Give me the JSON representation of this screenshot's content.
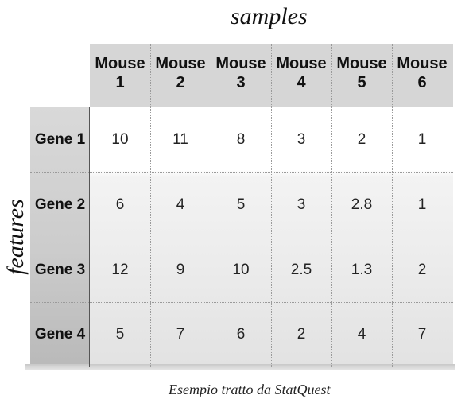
{
  "axis_labels": {
    "samples": "samples",
    "features": "features"
  },
  "caption": "Esempio tratto da StatQuest",
  "columns": [
    {
      "line1": "Mouse",
      "line2": "1"
    },
    {
      "line1": "Mouse",
      "line2": "2"
    },
    {
      "line1": "Mouse",
      "line2": "3"
    },
    {
      "line1": "Mouse",
      "line2": "4"
    },
    {
      "line1": "Mouse",
      "line2": "5"
    },
    {
      "line1": "Mouse",
      "line2": "6"
    }
  ],
  "rows": [
    {
      "label": "Gene 1",
      "values": [
        "10",
        "11",
        "8",
        "3",
        "2",
        "1"
      ]
    },
    {
      "label": "Gene 2",
      "values": [
        "6",
        "4",
        "5",
        "3",
        "2.8",
        "1"
      ]
    },
    {
      "label": "Gene 3",
      "values": [
        "12",
        "9",
        "10",
        "2.5",
        "1.3",
        "2"
      ]
    },
    {
      "label": "Gene 4",
      "values": [
        "5",
        "7",
        "6",
        "2",
        "4",
        "7"
      ]
    }
  ]
}
